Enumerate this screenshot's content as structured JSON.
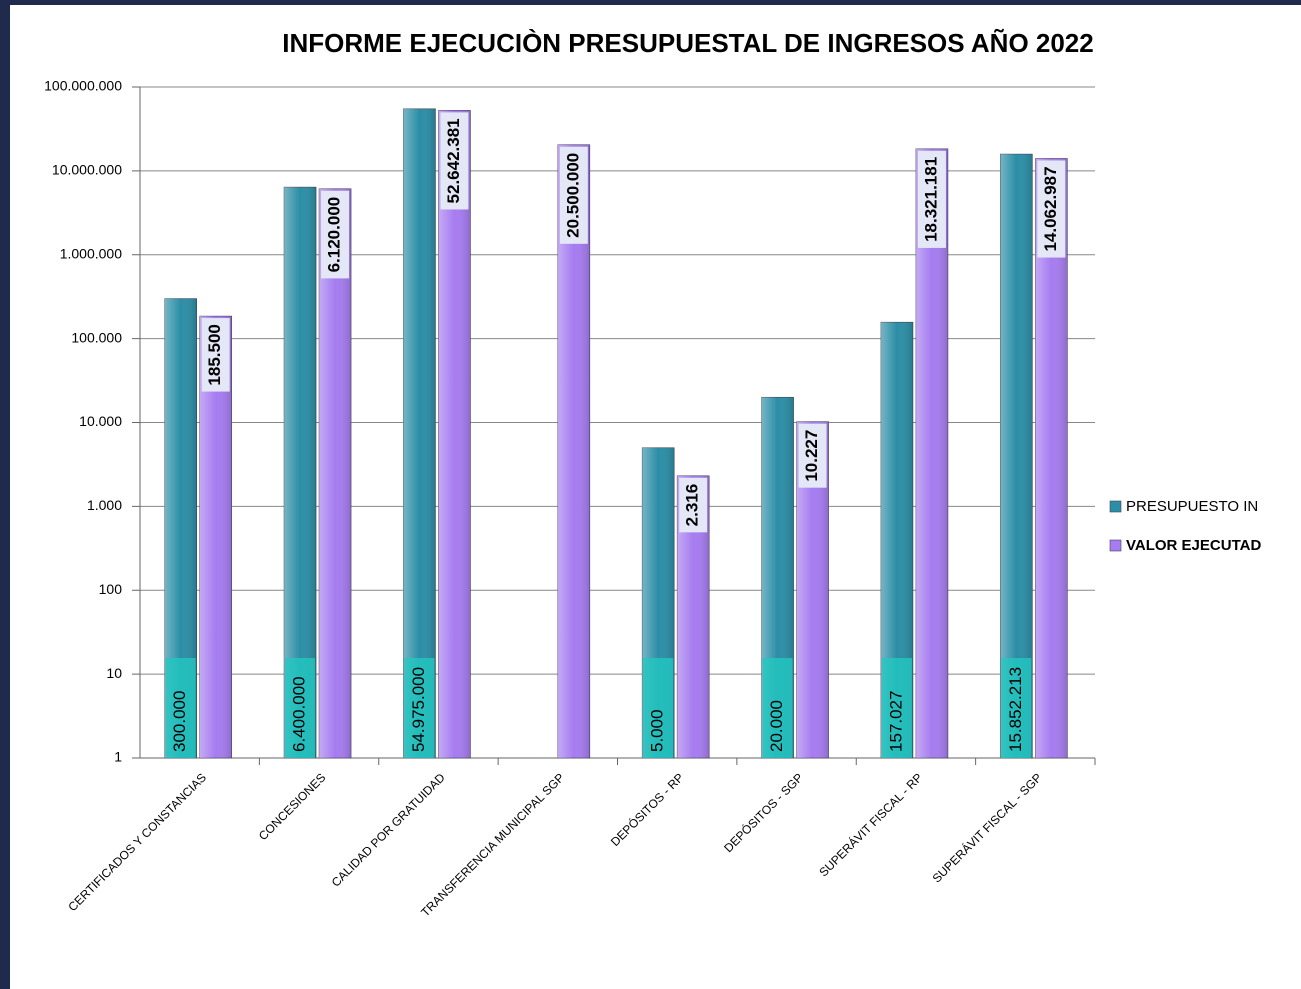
{
  "chart_data": {
    "type": "bar",
    "title": "INFORME EJECUCIÒN PRESUPUESTAL DE INGRESOS AÑO 2022",
    "categories": [
      "CERTIFICADOS Y CONSTANCIAS",
      "CONCESIONES",
      "CALIDAD POR GRATUIDAD",
      "TRANSFERENCIA MUNICIPAL SGP",
      "DEPÓSITOS - RP",
      "DEPÓSITOS - SGP",
      "SUPERÁVIT FISCAL - RP",
      "SUPERÁVIT FISCAL - SGP"
    ],
    "series": [
      {
        "name": "PRESUPUESTO IN",
        "color": "#2b8ea6",
        "values": [
          300000,
          6400000,
          54975000,
          null,
          5000,
          20000,
          157027,
          15852213
        ],
        "value_labels": [
          "300.000",
          "6.400.000",
          "54.975.000",
          null,
          "5.000",
          "20.000",
          "157.027",
          "15.852.213"
        ]
      },
      {
        "name": "VALOR EJECUTAD",
        "color": "#a67cf0",
        "values": [
          185500,
          6120000,
          52642381,
          20500000,
          2316,
          10227,
          18321181,
          14062987
        ],
        "value_labels": [
          "185.500",
          "6.120.000",
          "52.642.381",
          "20.500.000",
          "2.316",
          "10.227",
          "18.321.181",
          "14.062.987"
        ]
      }
    ],
    "log_scale": true,
    "ylim": [
      1,
      100000000
    ],
    "yticks": [
      1,
      10,
      100,
      {
        "value": 1000,
        "label": "1.000"
      },
      {
        "value": 10000,
        "label": "10.000"
      },
      {
        "value": 100000,
        "label": "100.000"
      },
      {
        "value": 1000000,
        "label": "1.000.000"
      },
      {
        "value": 10000000,
        "label": "10.000.000"
      },
      {
        "value": 100000000,
        "label": "100.000.000"
      }
    ],
    "grid": true,
    "legend": "right"
  }
}
